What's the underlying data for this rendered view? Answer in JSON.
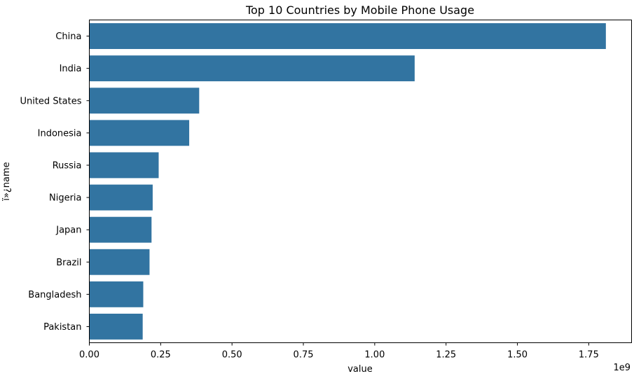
{
  "chart_data": {
    "type": "bar",
    "orientation": "horizontal",
    "title": "Top 10 Countries by Mobile Phone Usage",
    "xlabel": "value",
    "ylabel": "ï»¿name",
    "x_offset_label": "1e9",
    "xlim": [
      0,
      1.9
    ],
    "x_ticks": [
      0,
      0.25,
      0.5,
      0.75,
      1.0,
      1.25,
      1.5,
      1.75
    ],
    "x_tick_labels": [
      "0.00",
      "0.25",
      "0.50",
      "0.75",
      "1.00",
      "1.25",
      "1.50",
      "1.75"
    ],
    "bar_color": "#3274a1",
    "grid": false,
    "categories": [
      "China",
      "India",
      "United States",
      "Indonesia",
      "Russia",
      "Nigeria",
      "Japan",
      "Brazil",
      "Bangladesh",
      "Pakistan"
    ],
    "values": [
      1.81,
      1.14,
      0.385,
      0.35,
      0.243,
      0.222,
      0.218,
      0.211,
      0.189,
      0.187
    ]
  }
}
